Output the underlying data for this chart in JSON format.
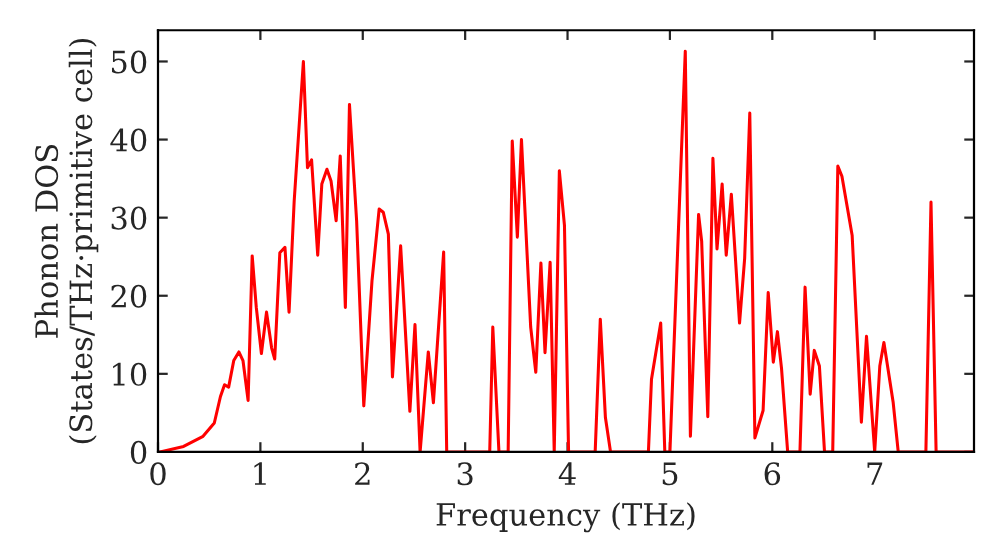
{
  "chart_data": {
    "type": "line",
    "xlabel": "Frequency (THz)",
    "ylabel": "Phonon DOS\n(States/THz·primitive cell)",
    "xlim": [
      0,
      7.97
    ],
    "ylim": [
      0,
      54
    ],
    "xticks": [
      0,
      1,
      2,
      3,
      4,
      5,
      6,
      7
    ],
    "yticks": [
      0,
      10,
      20,
      30,
      40,
      50
    ],
    "grid": false,
    "legend": false,
    "marker": "none",
    "line_style": "solid",
    "series": [
      {
        "color": "#ff0000",
        "x": [
          0.02,
          0.25,
          0.44,
          0.55,
          0.61,
          0.65,
          0.69,
          0.74,
          0.79,
          0.83,
          0.88,
          0.92,
          0.96,
          1.01,
          1.06,
          1.11,
          1.14,
          1.19,
          1.24,
          1.28,
          1.33,
          1.42,
          1.46,
          1.5,
          1.56,
          1.6,
          1.65,
          1.69,
          1.74,
          1.78,
          1.83,
          1.87,
          1.94,
          2.01,
          2.09,
          2.16,
          2.2,
          2.25,
          2.29,
          2.37,
          2.46,
          2.51,
          2.56,
          2.64,
          2.69,
          2.79,
          2.82,
          3.24,
          3.27,
          3.33,
          3.42,
          3.46,
          3.51,
          3.55,
          3.64,
          3.69,
          3.74,
          3.78,
          3.83,
          3.87,
          3.92,
          3.97,
          4.01,
          4.27,
          4.32,
          4.37,
          4.42,
          4.79,
          4.82,
          4.91,
          4.95,
          5.0,
          5.15,
          5.2,
          5.28,
          5.31,
          5.37,
          5.42,
          5.46,
          5.51,
          5.55,
          5.6,
          5.68,
          5.73,
          5.78,
          5.83,
          5.91,
          5.96,
          6.01,
          6.05,
          6.09,
          6.15,
          6.27,
          6.32,
          6.37,
          6.41,
          6.46,
          6.51,
          6.59,
          6.64,
          6.68,
          6.78,
          6.87,
          6.92,
          7.0,
          7.05,
          7.09,
          7.18,
          7.23,
          7.5,
          7.55,
          7.6,
          7.97
        ],
        "values": [
          0,
          0.7,
          2,
          3.7,
          7.1,
          8.6,
          8.3,
          11.7,
          12.8,
          11.7,
          6.6,
          25.1,
          18.5,
          12.6,
          17.9,
          13.3,
          11.9,
          25.5,
          26.2,
          17.9,
          32.1,
          50,
          36.4,
          37.4,
          25.2,
          34.3,
          36.2,
          34.7,
          29.6,
          37.9,
          18.5,
          44.5,
          29.6,
          5.9,
          21.9,
          31.1,
          30.7,
          27.9,
          9.6,
          26.4,
          5.2,
          16.3,
          0,
          12.8,
          6.3,
          25.6,
          0,
          0,
          16,
          0,
          0,
          39.8,
          27.5,
          40,
          16,
          10.2,
          24.2,
          12.7,
          24.3,
          0,
          36,
          29,
          0,
          0,
          17,
          4.4,
          0,
          0,
          9.3,
          16.5,
          0,
          0,
          51.3,
          2,
          30.4,
          27,
          4.5,
          37.6,
          26,
          34.3,
          25.2,
          33,
          16.5,
          24.8,
          43.4,
          1.8,
          5.3,
          20.4,
          11.5,
          15.4,
          10.7,
          0,
          0,
          21.1,
          7.4,
          13,
          11,
          0,
          0,
          36.6,
          35.3,
          27.7,
          3.8,
          14.8,
          0,
          11,
          14,
          6.4,
          0,
          0,
          32,
          0,
          0
        ]
      }
    ]
  }
}
